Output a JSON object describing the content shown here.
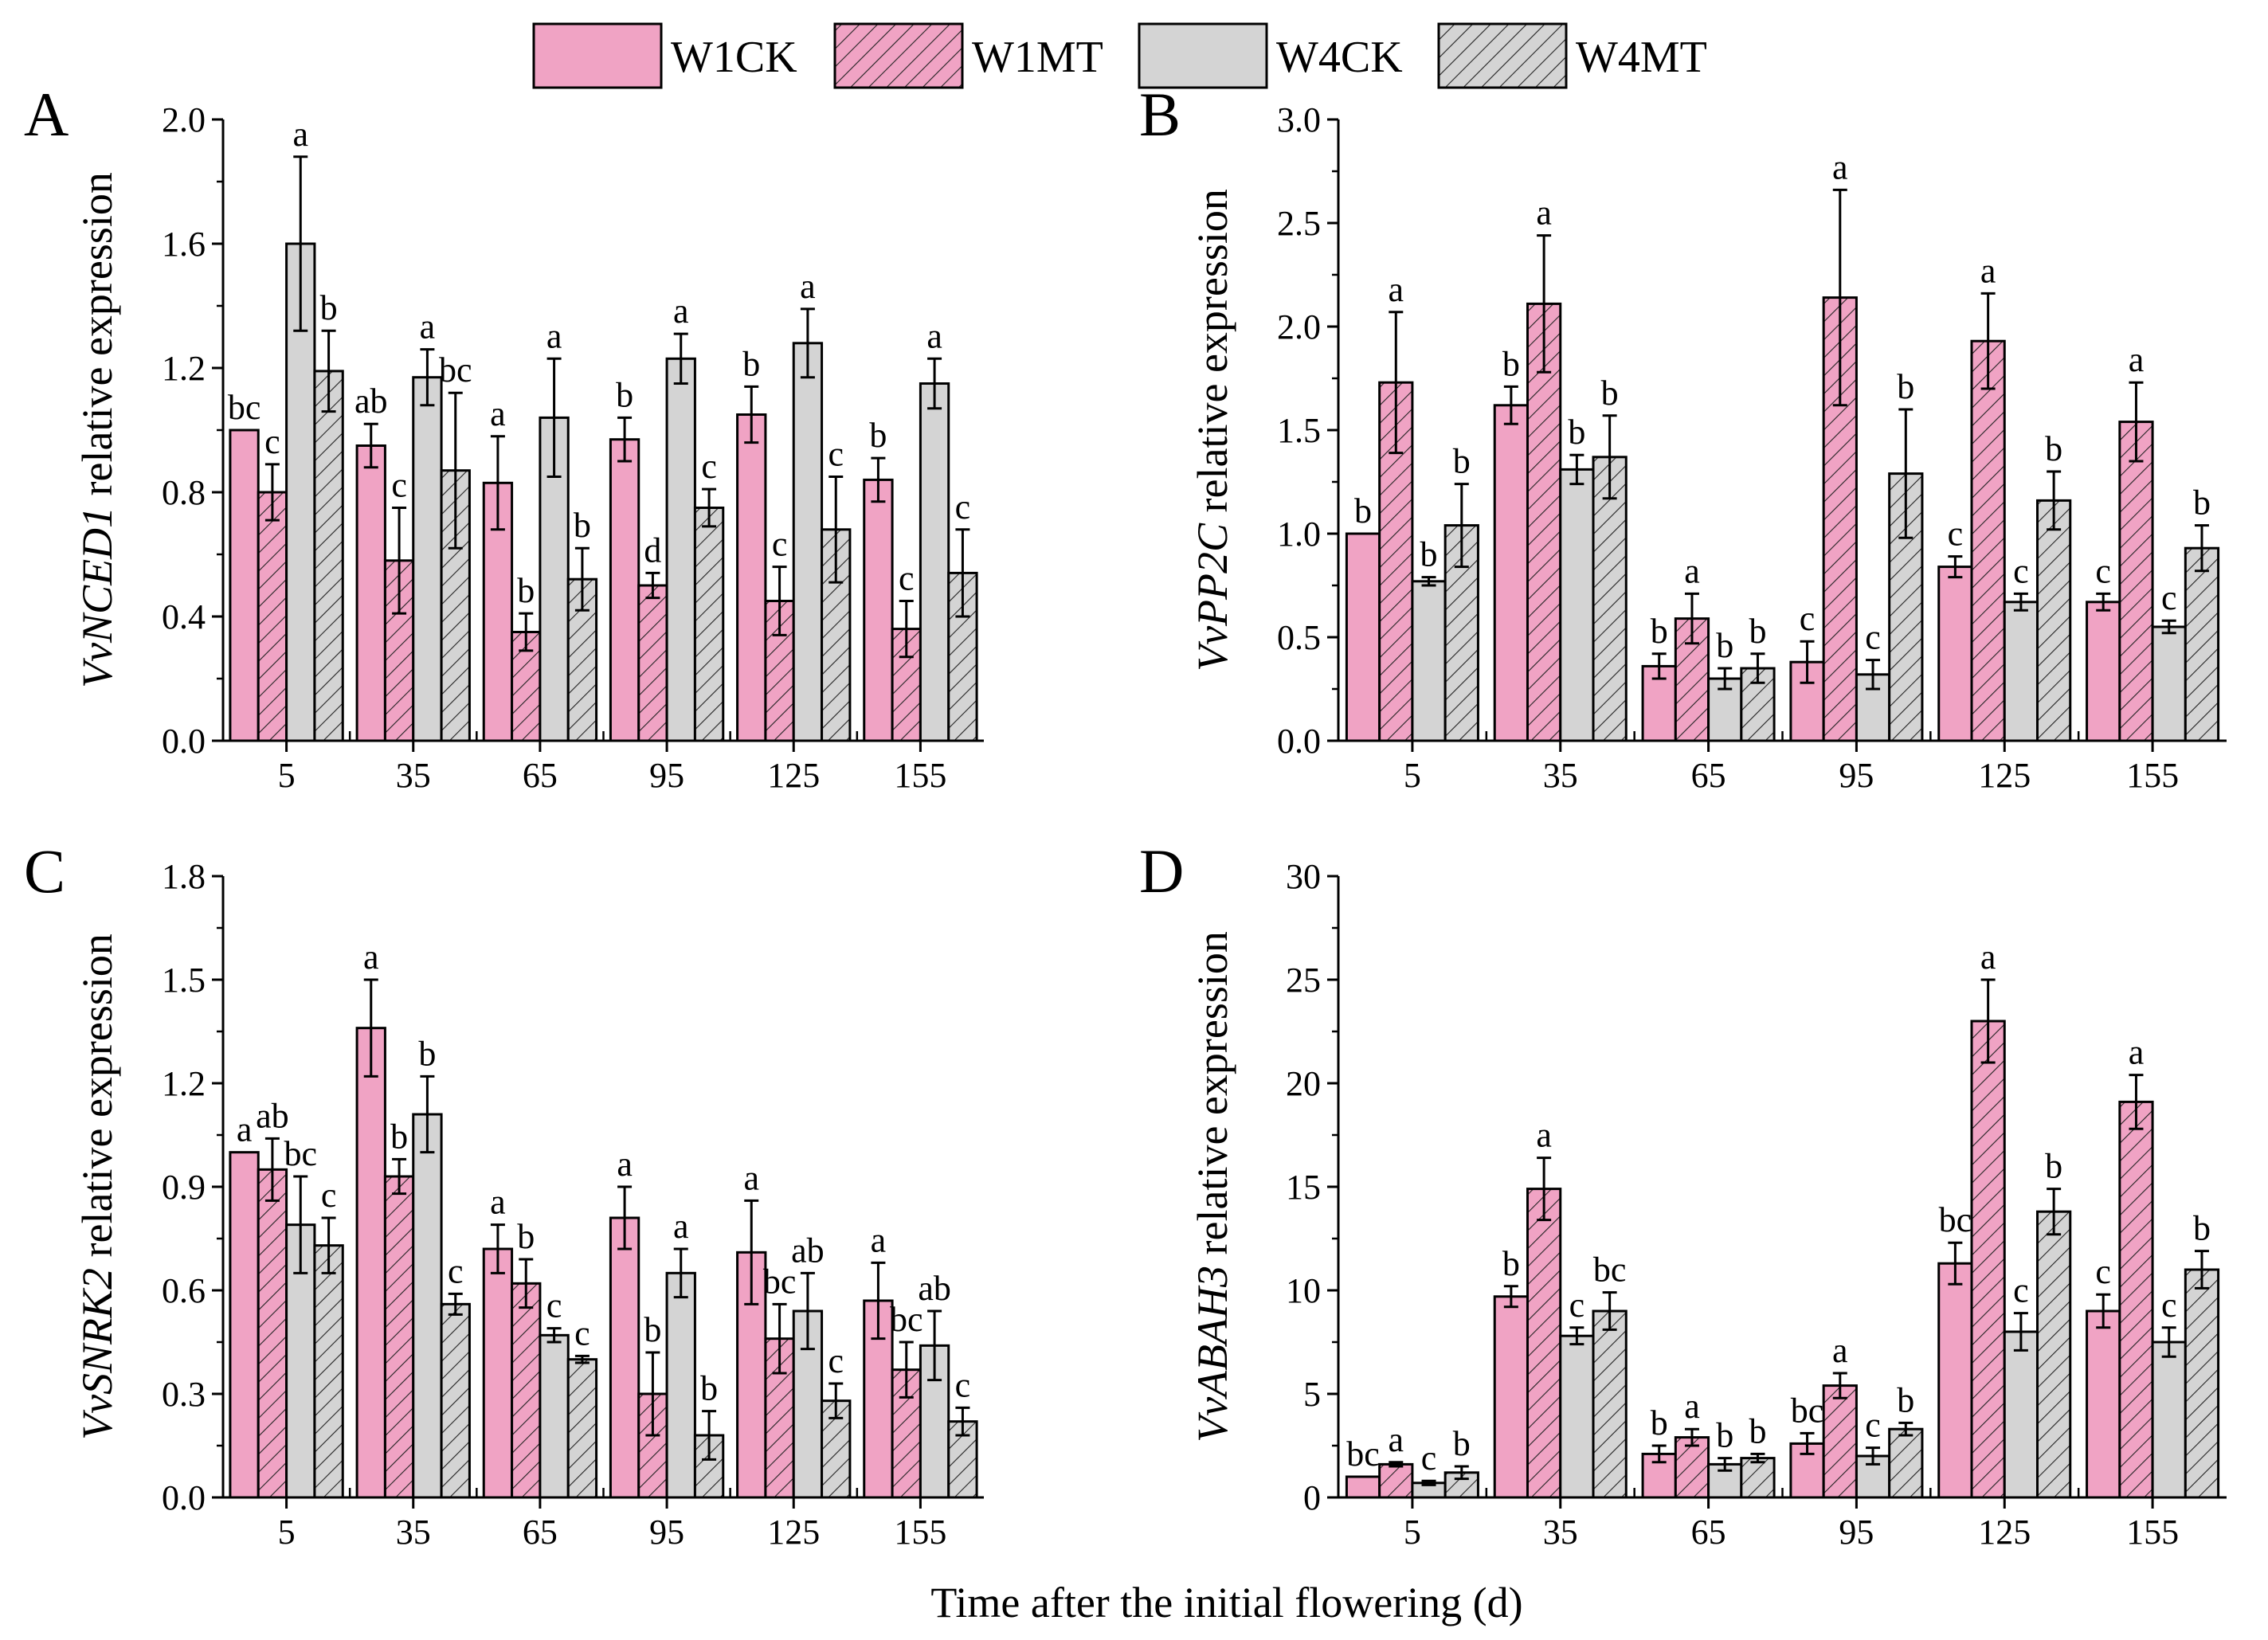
{
  "legend": [
    {
      "name": "W1CK",
      "color": "#f0a3c4",
      "hatch": false
    },
    {
      "name": "W1MT",
      "color": "#f0a3c4",
      "hatch": true
    },
    {
      "name": "W4CK",
      "color": "#d4d4d4",
      "hatch": false
    },
    {
      "name": "W4MT",
      "color": "#d4d4d4",
      "hatch": true
    }
  ],
  "xlabel": "Time after the initial flowering (d)",
  "chart_data": [
    {
      "panel": "A",
      "type": "bar",
      "ylabel_gene": "VvNCED1",
      "ylabel_suffix": " relative expression",
      "categories": [
        "5",
        "35",
        "65",
        "95",
        "125",
        "155"
      ],
      "ylim": [
        0,
        2.0
      ],
      "yticks": [
        "0.0",
        "0.4",
        "0.8",
        "1.2",
        "1.6",
        "2.0"
      ],
      "series": [
        {
          "name": "W1CK",
          "values": [
            1.0,
            0.95,
            0.83,
            0.97,
            1.05,
            0.84
          ],
          "errors": [
            0,
            0.07,
            0.15,
            0.07,
            0.09,
            0.07
          ],
          "labels": [
            "bc",
            "ab",
            "a",
            "b",
            "b",
            "b"
          ]
        },
        {
          "name": "W1MT",
          "values": [
            0.8,
            0.58,
            0.35,
            0.5,
            0.45,
            0.36
          ],
          "errors": [
            0.09,
            0.17,
            0.06,
            0.04,
            0.11,
            0.09
          ],
          "labels": [
            "c",
            "c",
            "b",
            "d",
            "c",
            "c"
          ]
        },
        {
          "name": "W4CK",
          "values": [
            1.6,
            1.17,
            1.04,
            1.23,
            1.28,
            1.15
          ],
          "errors": [
            0.28,
            0.09,
            0.19,
            0.08,
            0.11,
            0.08
          ],
          "labels": [
            "a",
            "a",
            "a",
            "a",
            "a",
            "a"
          ]
        },
        {
          "name": "W4MT",
          "values": [
            1.19,
            0.87,
            0.52,
            0.75,
            0.68,
            0.54
          ],
          "errors": [
            0.13,
            0.25,
            0.1,
            0.06,
            0.17,
            0.14
          ],
          "labels": [
            "b",
            "bc",
            "b",
            "c",
            "c",
            "c"
          ]
        }
      ]
    },
    {
      "panel": "B",
      "type": "bar",
      "ylabel_gene": "VvPP2C",
      "ylabel_suffix": " relative expression",
      "categories": [
        "5",
        "35",
        "65",
        "95",
        "125",
        "155"
      ],
      "ylim": [
        0,
        3.0
      ],
      "yticks": [
        "0.0",
        "0.5",
        "1.0",
        "1.5",
        "2.0",
        "2.5",
        "3.0"
      ],
      "series": [
        {
          "name": "W1CK",
          "values": [
            1.0,
            1.62,
            0.36,
            0.38,
            0.84,
            0.67
          ],
          "errors": [
            0,
            0.09,
            0.06,
            0.1,
            0.05,
            0.04
          ],
          "labels": [
            "b",
            "b",
            "b",
            "c",
            "c",
            "c"
          ]
        },
        {
          "name": "W1MT",
          "values": [
            1.73,
            2.11,
            0.59,
            2.14,
            1.93,
            1.54
          ],
          "errors": [
            0.34,
            0.33,
            0.12,
            0.52,
            0.23,
            0.19
          ],
          "labels": [
            "a",
            "a",
            "a",
            "a",
            "a",
            "a"
          ]
        },
        {
          "name": "W4CK",
          "values": [
            0.77,
            1.31,
            0.3,
            0.32,
            0.67,
            0.55
          ],
          "errors": [
            0.02,
            0.07,
            0.05,
            0.07,
            0.04,
            0.03
          ],
          "labels": [
            "b",
            "b",
            "b",
            "c",
            "c",
            "c"
          ]
        },
        {
          "name": "W4MT",
          "values": [
            1.04,
            1.37,
            0.35,
            1.29,
            1.16,
            0.93
          ],
          "errors": [
            0.2,
            0.2,
            0.07,
            0.31,
            0.14,
            0.11
          ],
          "labels": [
            "b",
            "b",
            "b",
            "b",
            "b",
            "b"
          ]
        }
      ]
    },
    {
      "panel": "C",
      "type": "bar",
      "ylabel_gene": "VvSNRK2",
      "ylabel_suffix": " relative expression",
      "categories": [
        "5",
        "35",
        "65",
        "95",
        "125",
        "155"
      ],
      "ylim": [
        0,
        1.8
      ],
      "yticks": [
        "0.0",
        "0.3",
        "0.6",
        "0.9",
        "1.2",
        "1.5",
        "1.8"
      ],
      "series": [
        {
          "name": "W1CK",
          "values": [
            1.0,
            1.36,
            0.72,
            0.81,
            0.71,
            0.57
          ],
          "errors": [
            0,
            0.14,
            0.07,
            0.09,
            0.15,
            0.11
          ],
          "labels": [
            "a",
            "a",
            "a",
            "a",
            "a",
            "a"
          ]
        },
        {
          "name": "W1MT",
          "values": [
            0.95,
            0.93,
            0.62,
            0.3,
            0.46,
            0.37
          ],
          "errors": [
            0.09,
            0.05,
            0.07,
            0.12,
            0.1,
            0.08
          ],
          "labels": [
            "ab",
            "b",
            "b",
            "b",
            "bc",
            "bc"
          ]
        },
        {
          "name": "W4CK",
          "values": [
            0.79,
            1.11,
            0.47,
            0.65,
            0.54,
            0.44
          ],
          "errors": [
            0.14,
            0.11,
            0.02,
            0.07,
            0.11,
            0.1
          ],
          "labels": [
            "bc",
            "b",
            "c",
            "a",
            "ab",
            "ab"
          ]
        },
        {
          "name": "W4MT",
          "values": [
            0.73,
            0.56,
            0.4,
            0.18,
            0.28,
            0.22
          ],
          "errors": [
            0.08,
            0.03,
            0.01,
            0.07,
            0.05,
            0.04
          ],
          "labels": [
            "c",
            "c",
            "c",
            "b",
            "c",
            "c"
          ]
        }
      ]
    },
    {
      "panel": "D",
      "type": "bar",
      "ylabel_gene": "VvABAH3",
      "ylabel_suffix": " relative expression",
      "categories": [
        "5",
        "35",
        "65",
        "95",
        "125",
        "155"
      ],
      "ylim": [
        0,
        30
      ],
      "yticks": [
        "0",
        "5",
        "10",
        "15",
        "20",
        "25",
        "30"
      ],
      "series": [
        {
          "name": "W1CK",
          "values": [
            1.0,
            9.7,
            2.1,
            2.6,
            11.3,
            9.0
          ],
          "errors": [
            0,
            0.5,
            0.4,
            0.5,
            1.0,
            0.8
          ],
          "labels": [
            "bc",
            "b",
            "b",
            "bc",
            "bc",
            "c"
          ]
        },
        {
          "name": "W1MT",
          "values": [
            1.6,
            14.9,
            2.9,
            5.4,
            23.0,
            19.1
          ],
          "errors": [
            0.1,
            1.5,
            0.4,
            0.6,
            2.0,
            1.3
          ],
          "labels": [
            "a",
            "a",
            "a",
            "a",
            "a",
            "a"
          ]
        },
        {
          "name": "W4CK",
          "values": [
            0.7,
            7.8,
            1.6,
            2.0,
            8.0,
            7.5
          ],
          "errors": [
            0.1,
            0.4,
            0.3,
            0.4,
            0.9,
            0.7
          ],
          "labels": [
            "c",
            "c",
            "b",
            "c",
            "c",
            "c"
          ]
        },
        {
          "name": "W4MT",
          "values": [
            1.2,
            9.0,
            1.9,
            3.3,
            13.8,
            11.0
          ],
          "errors": [
            0.3,
            0.9,
            0.2,
            0.3,
            1.1,
            0.9
          ],
          "labels": [
            "b",
            "bc",
            "b",
            "b",
            "b",
            "b"
          ]
        }
      ]
    }
  ]
}
